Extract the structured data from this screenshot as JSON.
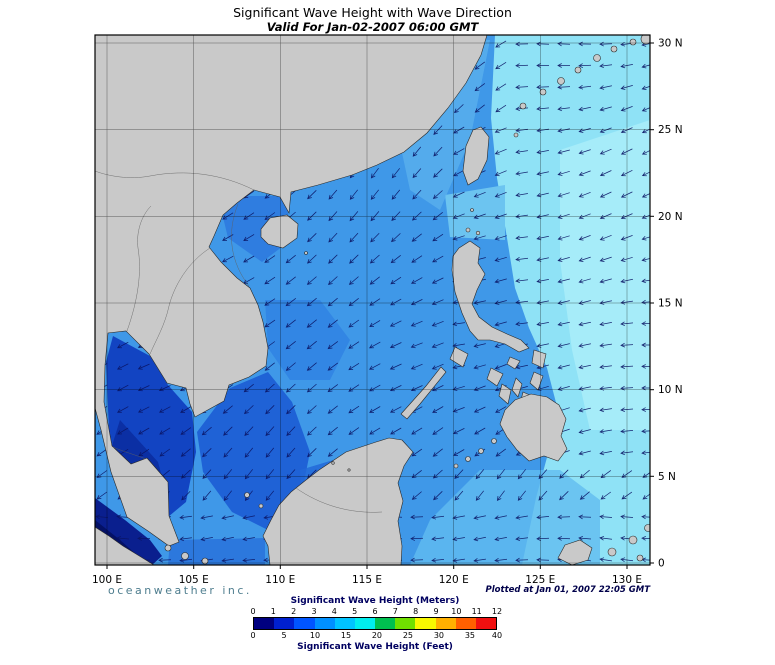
{
  "title": "Significant Wave Height with Wave Direction",
  "subtitle": "Valid For Jan-02-2007 06:00 GMT",
  "branding": "oceanweather inc.",
  "plotted_at": "Plotted at Jan 01, 2007 22:05 GMT",
  "axes": {
    "lon_ticks": [
      "100 E",
      "105 E",
      "110 E",
      "115 E",
      "120 E",
      "125 E",
      "130 E"
    ],
    "lat_ticks": [
      "30 N",
      "25 N",
      "20 N",
      "15 N",
      "10 N",
      "5 N",
      "0"
    ]
  },
  "legend": {
    "meters_label": "Significant Wave Height (Meters)",
    "meters_ticks": [
      "0",
      "1",
      "2",
      "3",
      "4",
      "5",
      "6",
      "7",
      "8",
      "9",
      "10",
      "11",
      "12"
    ],
    "feet_label": "Significant Wave Height (Feet)",
    "feet_ticks": [
      "0",
      "5",
      "10",
      "15",
      "20",
      "25",
      "30",
      "35",
      "40"
    ],
    "colors": [
      "#000080",
      "#0020d0",
      "#0055ff",
      "#0090ff",
      "#00c4ff",
      "#00eeee",
      "#00c050",
      "#70e000",
      "#f8f800",
      "#ffb000",
      "#ff6000",
      "#f01010"
    ]
  },
  "map_colors": {
    "ocean_base": "#3f98e8",
    "pacific": "#8fe2f6",
    "pacific_light": "#a9edfa",
    "strait_light": "#6cc4f0",
    "ne_scs_light": "#5cb2ee",
    "celebes_light": "#62bdf0",
    "tonkin": "#2f7de0",
    "mid_deep": "#2e7fe2",
    "viet_deep": "#1c5cd4",
    "borneo_deep": "#2268d8",
    "gulf_thailand": "#1244c2",
    "gulf_core": "#0b2fa4",
    "malacca": "#0a1f8e",
    "malacca_dark": "#041166",
    "java": "#2a74dc",
    "land": "#c9c9c9",
    "land_outline": "#2a2a2a",
    "border_line": "#606060",
    "arrow": "#0a1464",
    "grid": "#000000"
  },
  "chart_data": {
    "type": "heatmap",
    "title": "Significant Wave Height with Wave Direction",
    "valid_for": "Jan-02-2007 06:00 GMT",
    "region": {
      "lon_range": [
        "100 E",
        "130 E"
      ],
      "lat_range": [
        "0",
        "30 N"
      ]
    },
    "scale_meters": [
      0,
      1,
      2,
      3,
      4,
      5,
      6,
      7,
      8,
      9,
      10,
      11,
      12
    ],
    "scale_feet": [
      0,
      5,
      10,
      15,
      20,
      25,
      30,
      35,
      40
    ],
    "units": [
      "Meters",
      "Feet"
    ],
    "overlay": "wave direction arrows (predominantly northeast-monsoon flow toward southwest/west)"
  }
}
